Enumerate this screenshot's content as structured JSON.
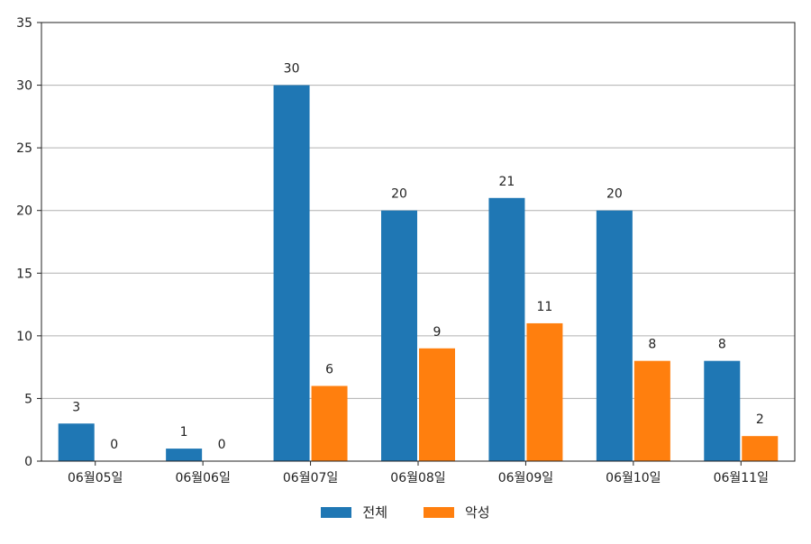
{
  "chart_data": {
    "type": "bar",
    "categories": [
      "06월05일",
      "06월06일",
      "06월07일",
      "06월08일",
      "06월09일",
      "06월10일",
      "06월11일"
    ],
    "series": [
      {
        "name": "전체",
        "values": [
          3,
          1,
          30,
          20,
          21,
          20,
          8
        ],
        "color": "#1f77b4"
      },
      {
        "name": "악성",
        "values": [
          0,
          0,
          6,
          9,
          11,
          8,
          2
        ],
        "color": "#ff7f0e"
      }
    ],
    "ylim": [
      0,
      35
    ],
    "yticks": [
      0,
      5,
      10,
      15,
      20,
      25,
      30,
      35
    ],
    "grid": "horizontal",
    "legend_position": "bottom-center",
    "data_labels": true
  }
}
